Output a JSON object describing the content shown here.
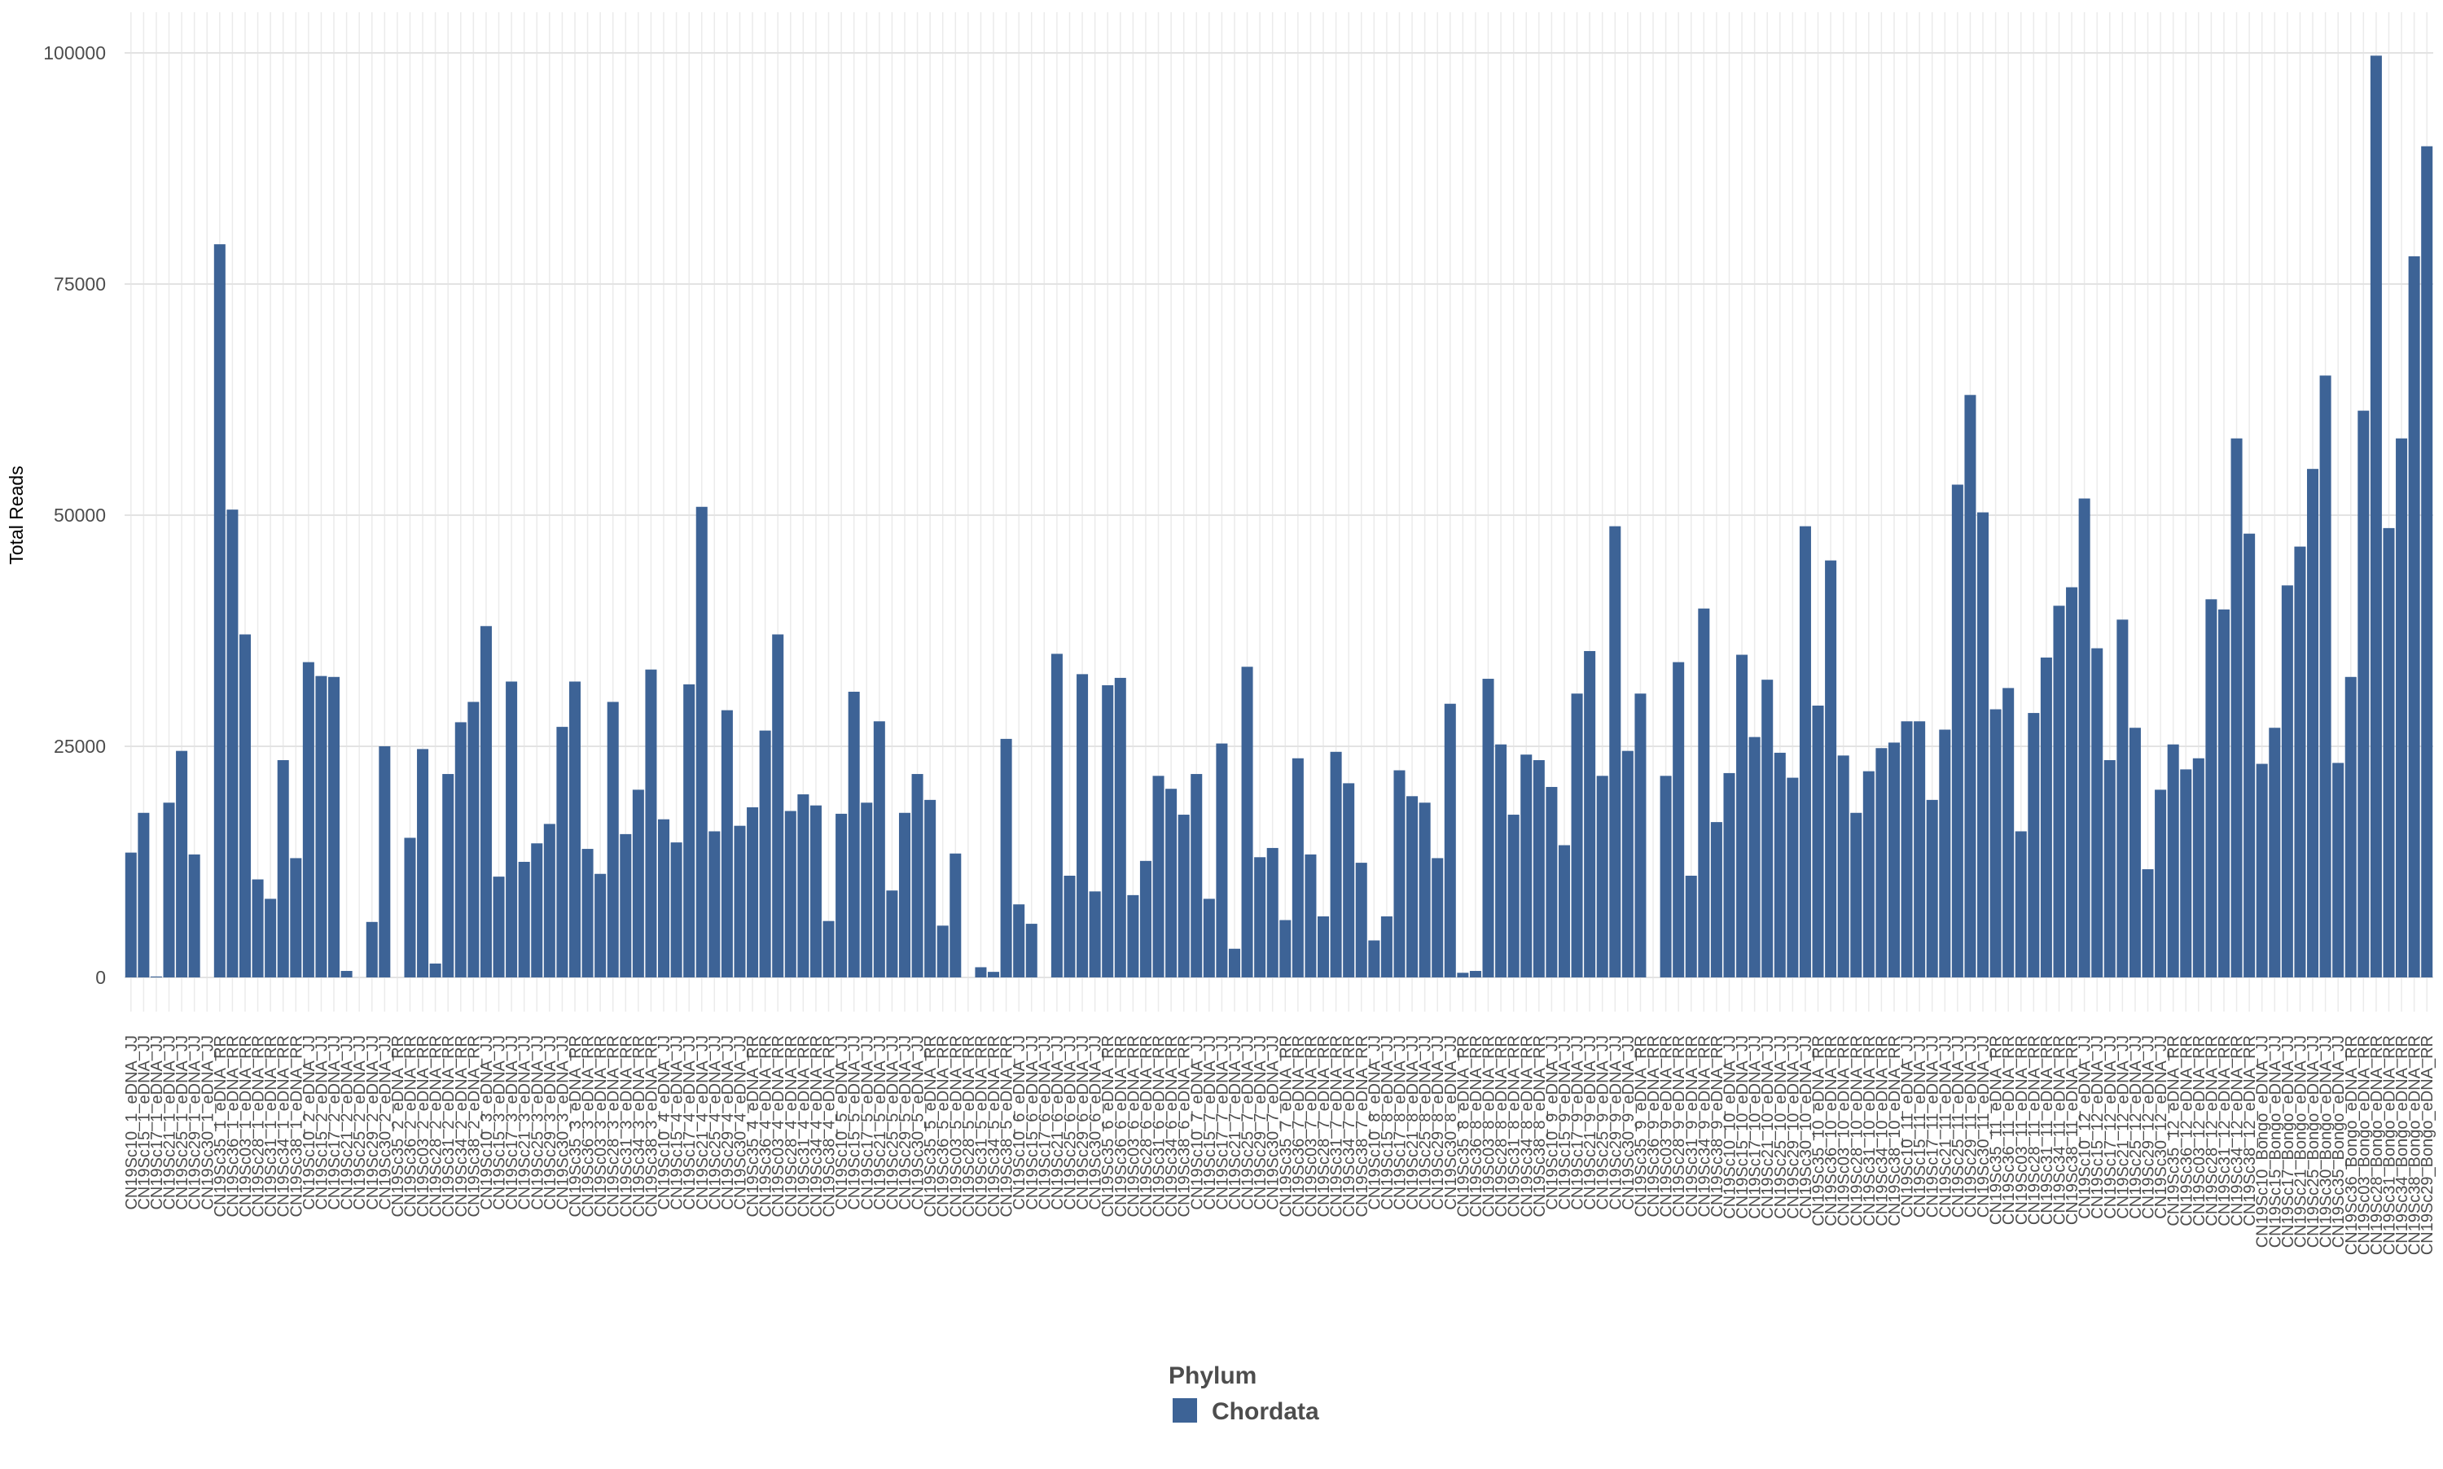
{
  "chart_data": {
    "type": "bar",
    "y_label": "Total Reads",
    "legend_title": "Phylum",
    "grid": true,
    "ylim": [
      -3700,
      104400
    ],
    "yticks": [
      0,
      25000,
      50000,
      75000,
      100000
    ],
    "categories": [
      "CN19Sc10_1_eDNA_JJ",
      "CN19Sc15_1_eDNA_JJ",
      "CN19Sc17_1_eDNA_JJ",
      "CN19Sc21_1_eDNA_JJ",
      "CN19Sc25_1_eDNA_JJ",
      "CN19Sc29_1_eDNA_JJ",
      "CN19Sc30_1_eDNA_JJ",
      "CN19Sc35_1_eDNA_RR",
      "CN19Sc36_1_eDNA_RR",
      "CN19Sc03_1_eDNA_RR",
      "CN19Sc28_1_eDNA_RR",
      "CN19Sc31_1_eDNA_RR",
      "CN19Sc34_1_eDNA_RR",
      "CN19Sc38_1_eDNA_RR",
      "CN19Sc10_2_eDNA_JJ",
      "CN19Sc15_2_eDNA_JJ",
      "CN19Sc17_2_eDNA_JJ",
      "CN19Sc21_2_eDNA_JJ",
      "CN19Sc25_2_eDNA_JJ",
      "CN19Sc29_2_eDNA_JJ",
      "CN19Sc30_2_eDNA_JJ",
      "CN19Sc35_2_eDNA_RR",
      "CN19Sc36_2_eDNA_RR",
      "CN19Sc03_2_eDNA_RR",
      "CN19Sc28_2_eDNA_RR",
      "CN19Sc31_2_eDNA_RR",
      "CN19Sc34_2_eDNA_RR",
      "CN19Sc38_2_eDNA_RR",
      "CN19Sc10_3_eDNA_JJ",
      "CN19Sc15_3_eDNA_JJ",
      "CN19Sc17_3_eDNA_JJ",
      "CN19Sc21_3_eDNA_JJ",
      "CN19Sc25_3_eDNA_JJ",
      "CN19Sc29_3_eDNA_JJ",
      "CN19Sc30_3_eDNA_JJ",
      "CN19Sc35_3_eDNA_RR",
      "CN19Sc36_3_eDNA_RR",
      "CN19Sc03_3_eDNA_RR",
      "CN19Sc28_3_eDNA_RR",
      "CN19Sc31_3_eDNA_RR",
      "CN19Sc34_3_eDNA_RR",
      "CN19Sc38_3_eDNA_RR",
      "CN19Sc10_4_eDNA_JJ",
      "CN19Sc15_4_eDNA_JJ",
      "CN19Sc17_4_eDNA_JJ",
      "CN19Sc21_4_eDNA_JJ",
      "CN19Sc25_4_eDNA_JJ",
      "CN19Sc29_4_eDNA_JJ",
      "CN19Sc30_4_eDNA_JJ",
      "CN19Sc35_4_eDNA_RR",
      "CN19Sc36_4_eDNA_RR",
      "CN19Sc03_4_eDNA_RR",
      "CN19Sc28_4_eDNA_RR",
      "CN19Sc31_4_eDNA_RR",
      "CN19Sc34_4_eDNA_RR",
      "CN19Sc38_4_eDNA_RR",
      "CN19Sc10_5_eDNA_JJ",
      "CN19Sc15_5_eDNA_JJ",
      "CN19Sc17_5_eDNA_JJ",
      "CN19Sc21_5_eDNA_JJ",
      "CN19Sc25_5_eDNA_JJ",
      "CN19Sc29_5_eDNA_JJ",
      "CN19Sc30_5_eDNA_JJ",
      "CN19Sc35_5_eDNA_RR",
      "CN19Sc36_5_eDNA_RR",
      "CN19Sc03_5_eDNA_RR",
      "CN19Sc28_5_eDNA_RR",
      "CN19Sc31_5_eDNA_RR",
      "CN19Sc34_5_eDNA_RR",
      "CN19Sc38_5_eDNA_RR",
      "CN19Sc10_6_eDNA_JJ",
      "CN19Sc15_6_eDNA_JJ",
      "CN19Sc17_6_eDNA_JJ",
      "CN19Sc21_6_eDNA_JJ",
      "CN19Sc25_6_eDNA_JJ",
      "CN19Sc29_6_eDNA_JJ",
      "CN19Sc30_6_eDNA_JJ",
      "CN19Sc35_6_eDNA_RR",
      "CN19Sc36_6_eDNA_RR",
      "CN19Sc03_6_eDNA_RR",
      "CN19Sc28_6_eDNA_RR",
      "CN19Sc31_6_eDNA_RR",
      "CN19Sc34_6_eDNA_RR",
      "CN19Sc38_6_eDNA_RR",
      "CN19Sc10_7_eDNA_JJ",
      "CN19Sc15_7_eDNA_JJ",
      "CN19Sc17_7_eDNA_JJ",
      "CN19Sc21_7_eDNA_JJ",
      "CN19Sc25_7_eDNA_JJ",
      "CN19Sc29_7_eDNA_JJ",
      "CN19Sc30_7_eDNA_JJ",
      "CN19Sc35_7_eDNA_RR",
      "CN19Sc36_7_eDNA_RR",
      "CN19Sc03_7_eDNA_RR",
      "CN19Sc28_7_eDNA_RR",
      "CN19Sc31_7_eDNA_RR",
      "CN19Sc34_7_eDNA_RR",
      "CN19Sc38_7_eDNA_RR",
      "CN19Sc10_8_eDNA_JJ",
      "CN19Sc15_8_eDNA_JJ",
      "CN19Sc17_8_eDNA_JJ",
      "CN19Sc21_8_eDNA_JJ",
      "CN19Sc25_8_eDNA_JJ",
      "CN19Sc29_8_eDNA_JJ",
      "CN19Sc30_8_eDNA_JJ",
      "CN19Sc35_8_eDNA_RR",
      "CN19Sc36_8_eDNA_RR",
      "CN19Sc03_8_eDNA_RR",
      "CN19Sc28_8_eDNA_RR",
      "CN19Sc31_8_eDNA_RR",
      "CN19Sc34_8_eDNA_RR",
      "CN19Sc38_8_eDNA_RR",
      "CN19Sc10_9_eDNA_JJ",
      "CN19Sc15_9_eDNA_JJ",
      "CN19Sc17_9_eDNA_JJ",
      "CN19Sc21_9_eDNA_JJ",
      "CN19Sc25_9_eDNA_JJ",
      "CN19Sc29_9_eDNA_JJ",
      "CN19Sc30_9_eDNA_JJ",
      "CN19Sc35_9_eDNA_RR",
      "CN19Sc36_9_eDNA_RR",
      "CN19Sc03_9_eDNA_RR",
      "CN19Sc28_9_eDNA_RR",
      "CN19Sc31_9_eDNA_RR",
      "CN19Sc34_9_eDNA_RR",
      "CN19Sc38_9_eDNA_RR",
      "CN19Sc10_10_eDNA_JJ",
      "CN19Sc15_10_eDNA_JJ",
      "CN19Sc17_10_eDNA_JJ",
      "CN19Sc21_10_eDNA_JJ",
      "CN19Sc25_10_eDNA_JJ",
      "CN19Sc29_10_eDNA_JJ",
      "CN19Sc30_10_eDNA_JJ",
      "CN19Sc35_10_eDNA_RR",
      "CN19Sc36_10_eDNA_RR",
      "CN19Sc03_10_eDNA_RR",
      "CN19Sc28_10_eDNA_RR",
      "CN19Sc31_10_eDNA_RR",
      "CN19Sc34_10_eDNA_RR",
      "CN19Sc38_10_eDNA_RR",
      "CN19Sc10_11_eDNA_JJ",
      "CN19Sc15_11_eDNA_JJ",
      "CN19Sc17_11_eDNA_JJ",
      "CN19Sc21_11_eDNA_JJ",
      "CN19Sc25_11_eDNA_JJ",
      "CN19Sc29_11_eDNA_JJ",
      "CN19Sc30_11_eDNA_JJ",
      "CN19Sc35_11_eDNA_RR",
      "CN19Sc36_11_eDNA_RR",
      "CN19Sc03_11_eDNA_RR",
      "CN19Sc28_11_eDNA_RR",
      "CN19Sc31_11_eDNA_RR",
      "CN19Sc34_11_eDNA_RR",
      "CN19Sc38_11_eDNA_RR",
      "CN19Sc10_12_eDNA_JJ",
      "CN19Sc15_12_eDNA_JJ",
      "CN19Sc17_12_eDNA_JJ",
      "CN19Sc21_12_eDNA_JJ",
      "CN19Sc25_12_eDNA_JJ",
      "CN19Sc29_12_eDNA_JJ",
      "CN19Sc30_12_eDNA_JJ",
      "CN19Sc35_12_eDNA_RR",
      "CN19Sc36_12_eDNA_RR",
      "CN19Sc03_12_eDNA_RR",
      "CN19Sc28_12_eDNA_RR",
      "CN19Sc31_12_eDNA_RR",
      "CN19Sc34_12_eDNA_RR",
      "CN19Sc38_12_eDNA_RR",
      "CN19Sc10_Bongo_eDNA_JJ",
      "CN19Sc15_Bongo_eDNA_JJ",
      "CN19Sc17_Bongo_eDNA_JJ",
      "CN19Sc21_Bongo_eDNA_JJ",
      "CN19Sc25_Bongo_eDNA_JJ",
      "CN19Sc30_Bongo_eDNA_JJ",
      "CN19Sc35_Bongo_eDNA_JJ",
      "CN19Sc36_Bongo_eDNA_RR",
      "CN19Sc03_Bongo_eDNA_RR",
      "CN19Sc28_Bongo_eDNA_RR",
      "CN19Sc31_Bongo_eDNA_RR",
      "CN19Sc34_Bongo_eDNA_RR",
      "CN19Sc38_Bongo_eDNA_RR",
      "CN19Sc29_Bongo_eDNA_RR"
    ],
    "series": [
      {
        "name": "Chordata",
        "color": "#3d6396",
        "values": [
          13500,
          17800,
          100,
          18900,
          24500,
          13300,
          0,
          79300,
          50600,
          37100,
          10600,
          8500,
          23500,
          12900,
          34100,
          32600,
          32500,
          700,
          0,
          6000,
          25000,
          0,
          15100,
          24700,
          1500,
          22000,
          27600,
          29800,
          38000,
          10900,
          32000,
          12500,
          14500,
          16600,
          27100,
          32000,
          13900,
          11200,
          29800,
          15500,
          20300,
          33300,
          17100,
          14600,
          31700,
          50900,
          15800,
          28900,
          16400,
          18400,
          26700,
          37100,
          18000,
          19800,
          18600,
          6100,
          17700,
          30900,
          18900,
          27700,
          9400,
          17800,
          22000,
          19200,
          5600,
          13400,
          0,
          1100,
          600,
          25800,
          7900,
          5800,
          0,
          35000,
          11000,
          32800,
          9300,
          31600,
          32400,
          8900,
          12600,
          21800,
          20400,
          17600,
          22000,
          8500,
          25300,
          3100,
          33600,
          13000,
          14000,
          6200,
          23700,
          13300,
          6600,
          24400,
          21000,
          12400,
          4000,
          6600,
          22400,
          19600,
          18900,
          12900,
          29600,
          500,
          700,
          32300,
          25200,
          17600,
          24100,
          23500,
          20600,
          14300,
          30700,
          35300,
          21800,
          48800,
          24500,
          30700,
          0,
          21800,
          34100,
          11000,
          39900,
          16800,
          22100,
          34900,
          26000,
          32200,
          24300,
          21600,
          48800,
          29400,
          45100,
          24000,
          17800,
          22300,
          24800,
          25400,
          27700,
          27700,
          19200,
          26800,
          53300,
          63000,
          50300,
          29000,
          31300,
          15800,
          28600,
          34600,
          40200,
          42200,
          51800,
          35600,
          23500,
          38700,
          27000,
          11700,
          20300,
          25200,
          22500,
          23700,
          40900,
          39800,
          58300,
          48000,
          23100,
          27000,
          42400,
          46600,
          55000,
          65100,
          23200,
          32500,
          61300,
          99700,
          48600,
          58300,
          78000,
          89900
        ]
      }
    ]
  }
}
